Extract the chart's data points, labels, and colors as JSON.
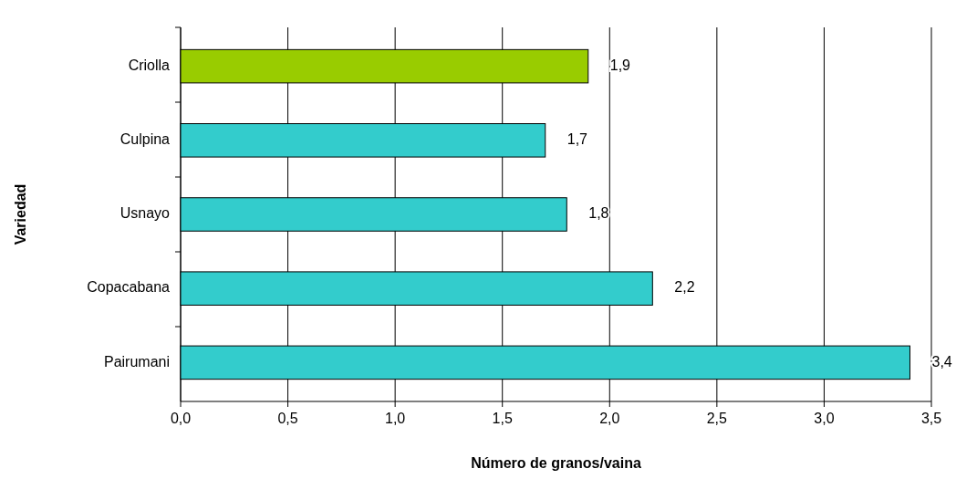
{
  "chart_data": {
    "type": "bar",
    "orientation": "horizontal",
    "xlabel": "Número de granos/vaina",
    "ylabel": "Variedad",
    "categories": [
      "Criolla",
      "Culpina",
      "Usnayo",
      "Copacabana",
      "Pairumani"
    ],
    "values": [
      1.9,
      1.7,
      1.8,
      2.2,
      3.4
    ],
    "colors": [
      "#99cc00",
      "#33cccc",
      "#33cccc",
      "#33cccc",
      "#33cccc"
    ],
    "value_labels": [
      "1,9",
      "1,7",
      "1,8",
      "2,2",
      "3,4"
    ],
    "xlim": [
      0,
      3.5
    ],
    "xticks": [
      {
        "value": 0,
        "label": "0,0"
      },
      {
        "value": 0.5,
        "label": "0,5"
      },
      {
        "value": 1,
        "label": "1,0"
      },
      {
        "value": 1.5,
        "label": "1,5"
      },
      {
        "value": 2,
        "label": "2,0"
      },
      {
        "value": 2.5,
        "label": "2,5"
      },
      {
        "value": 3,
        "label": "3,0"
      },
      {
        "value": 3.5,
        "label": "3,5"
      }
    ],
    "grid": "x"
  }
}
